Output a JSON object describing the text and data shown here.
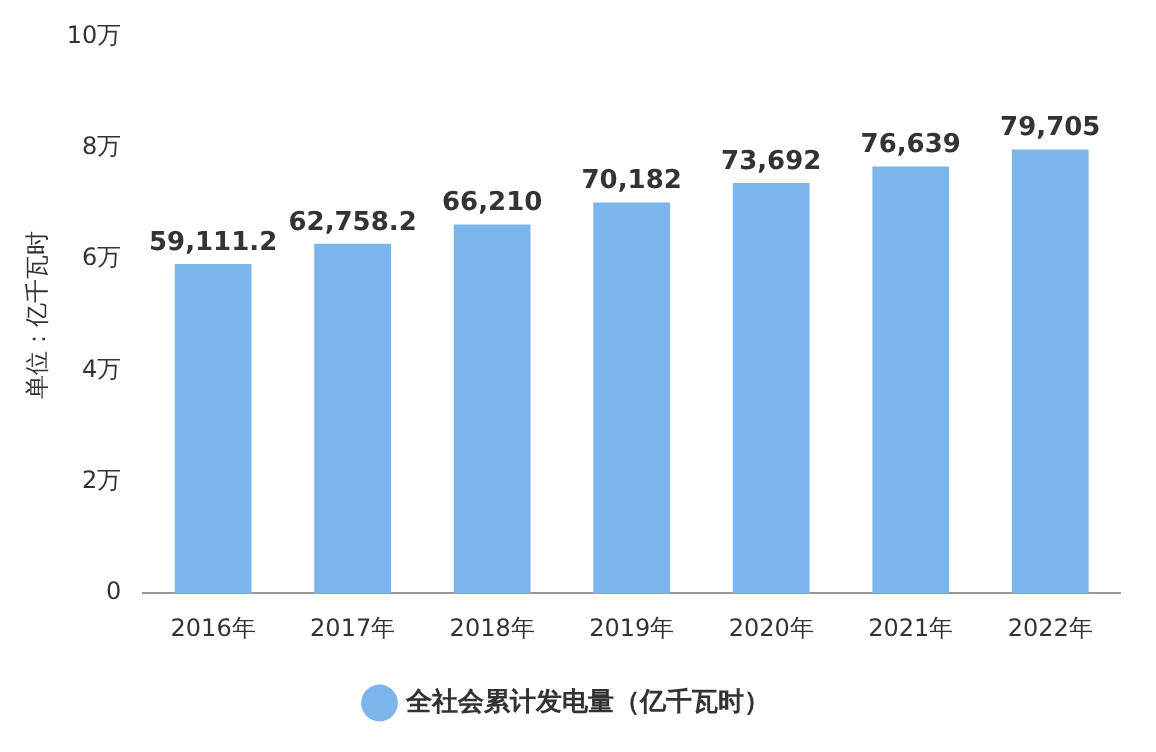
{
  "chart_data": {
    "type": "bar",
    "ylabel": "单位：亿千瓦时",
    "categories": [
      "2016年",
      "2017年",
      "2018年",
      "2019年",
      "2020年",
      "2021年",
      "2022年"
    ],
    "series": [
      {
        "name": "全社会累计发电量（亿千瓦时）",
        "color": "#7cb5ec",
        "values": [
          5.91112,
          6.27582,
          6.621,
          7.0182,
          7.3692,
          7.6639,
          7.9705
        ]
      }
    ],
    "value_labels": [
      "59,111.2",
      "62,758.2",
      "66,210",
      "70,182",
      "73,692",
      "76,639",
      "79,705"
    ],
    "ylim": [
      0,
      10
    ],
    "yticks": [
      0,
      {
        "value": 2,
        "label": "2万"
      },
      {
        "value": 4,
        "label": "4万"
      },
      {
        "value": 6,
        "label": "6万"
      },
      {
        "value": 8,
        "label": "8万"
      },
      {
        "value": 10,
        "label": "10万"
      }
    ],
    "grid": false,
    "legend": "bottom",
    "marker": "circle"
  }
}
